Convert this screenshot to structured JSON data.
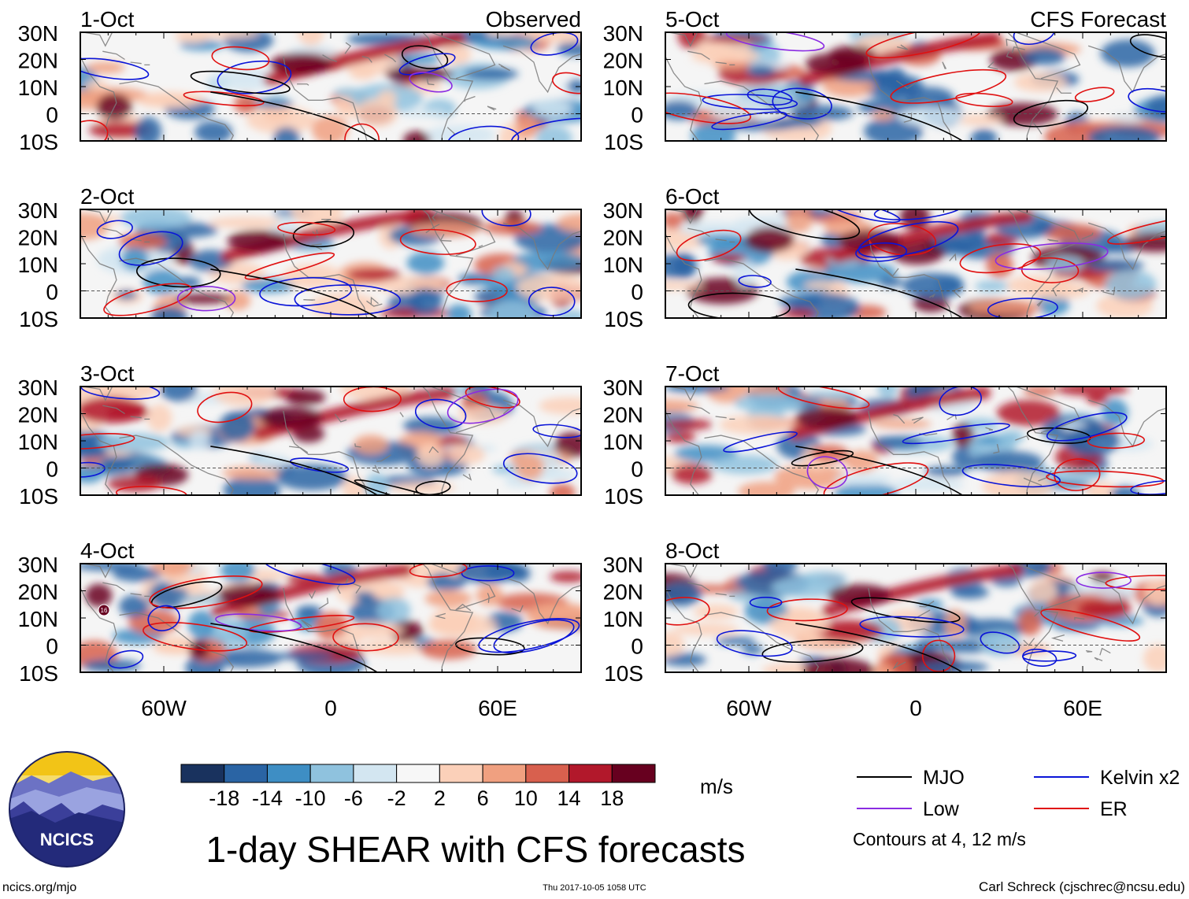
{
  "chart_data": {
    "type": "heatmap",
    "title": "1-day SHEAR with CFS forecasts",
    "units": "m/s",
    "latitude_labels": [
      "30N",
      "20N",
      "10N",
      "0",
      "10S"
    ],
    "longitude_labels": [
      "60W",
      "0",
      "60E"
    ],
    "lat_range": [
      -10,
      30
    ],
    "lon_range": [
      -90,
      90
    ],
    "columns": {
      "observed": "Observed",
      "forecast": "CFS Forecast"
    },
    "panels": [
      {
        "date": "1-Oct",
        "kind": "observed"
      },
      {
        "date": "2-Oct",
        "kind": "observed"
      },
      {
        "date": "3-Oct",
        "kind": "observed"
      },
      {
        "date": "4-Oct",
        "kind": "observed"
      },
      {
        "date": "5-Oct",
        "kind": "forecast"
      },
      {
        "date": "6-Oct",
        "kind": "forecast"
      },
      {
        "date": "7-Oct",
        "kind": "forecast"
      },
      {
        "date": "8-Oct",
        "kind": "forecast"
      }
    ],
    "colorbar": {
      "ticks": [
        "-18",
        "-14",
        "-10",
        "-6",
        "-2",
        "2",
        "6",
        "10",
        "14",
        "18"
      ],
      "colors": [
        "#19325e",
        "#2a64a4",
        "#3e8ec4",
        "#8fc2de",
        "#d3e6f1",
        "#f7f7f7",
        "#fbd0b9",
        "#f0a080",
        "#d8604e",
        "#b2182b",
        "#67001f"
      ]
    },
    "legend": [
      {
        "label": "MJO",
        "color": "#000000"
      },
      {
        "label": "Kelvin x2",
        "color": "#0a14d8"
      },
      {
        "label": "Low",
        "color": "#8a2be2"
      },
      {
        "label": "ER",
        "color": "#e01010"
      }
    ],
    "contour_note": "Contours at 4, 12 m/s",
    "storm_marker": "16"
  },
  "logo": {
    "text": "NCICS"
  },
  "footer": {
    "url": "ncics.org/mjo",
    "timestamp": "Thu 2017-10-05 1058 UTC",
    "author": "Carl Schreck (cjschrec@ncsu.edu)"
  }
}
